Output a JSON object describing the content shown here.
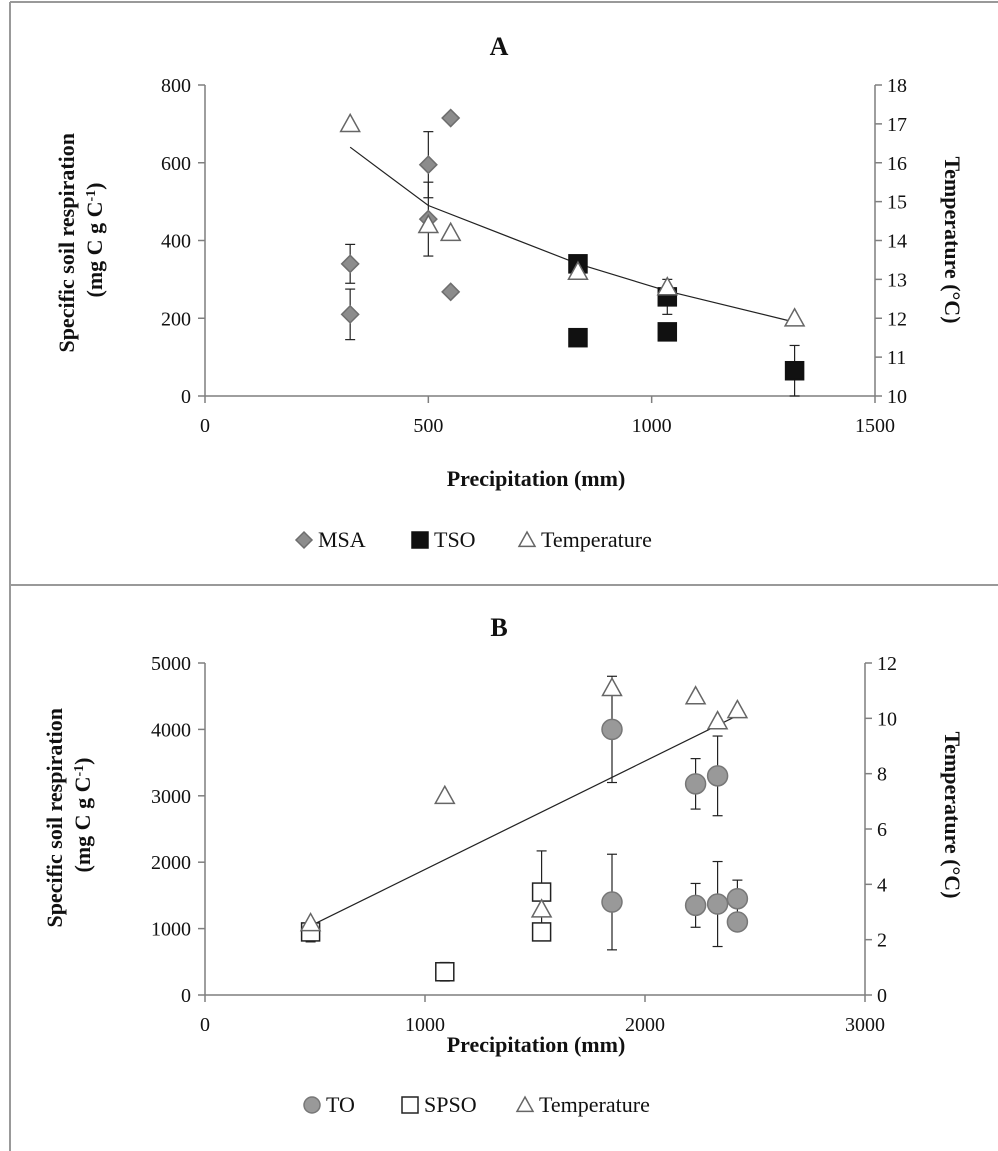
{
  "chart_data": [
    {
      "type": "scatter",
      "panel_label": "A",
      "xlabel": "Precipitation  (mm)",
      "ylabel_lines": [
        "Specific soil respiration",
        "(mg C g C"
      ],
      "ylabel_sup": "-1",
      "ylabel_close": ")",
      "y2label": "Temperature  (°C)",
      "xlim": [
        0,
        1500
      ],
      "xticks": [
        0,
        500,
        1000,
        1500
      ],
      "xtick_labels": [
        "0",
        "500",
        "1000",
        "1500"
      ],
      "ylim": [
        0,
        800
      ],
      "yticks": [
        0,
        200,
        400,
        600,
        800
      ],
      "ytick_labels": [
        "0",
        "200",
        "400",
        "600",
        "800"
      ],
      "y2lim": [
        10,
        18
      ],
      "y2ticks": [
        10,
        11,
        12,
        13,
        14,
        15,
        16,
        17,
        18
      ],
      "y2tick_labels": [
        "10",
        "11",
        "12",
        "13",
        "14",
        "15",
        "16",
        "17",
        "18"
      ],
      "grid": false,
      "legend_position": "bottom",
      "series": [
        {
          "name": "MSA",
          "marker": "diamond",
          "fill": "#8c8c8c",
          "stroke": "#6e6e6e",
          "axis": "left",
          "points": [
            {
              "x": 325,
              "y": 340,
              "err": 50
            },
            {
              "x": 325,
              "y": 210,
              "err": 65
            },
            {
              "x": 500,
              "y": 595,
              "err": 85
            },
            {
              "x": 500,
              "y": 455,
              "err": 95
            },
            {
              "x": 550,
              "y": 715,
              "err": 0
            },
            {
              "x": 550,
              "y": 268,
              "err": 0
            }
          ]
        },
        {
          "name": "TSO",
          "marker": "square",
          "fill": "#111111",
          "stroke": "#111111",
          "axis": "left",
          "points": [
            {
              "x": 835,
              "y": 340,
              "err": 0
            },
            {
              "x": 835,
              "y": 150,
              "err": 0
            },
            {
              "x": 1035,
              "y": 255,
              "err": 45
            },
            {
              "x": 1035,
              "y": 165,
              "err": 0
            },
            {
              "x": 1320,
              "y": 65,
              "err": 65
            }
          ]
        },
        {
          "name": "Temperature",
          "marker": "triangle",
          "fill": "#ffffff",
          "stroke": "#666666",
          "axis": "right",
          "points": [
            {
              "x": 325,
              "y": 17.0
            },
            {
              "x": 500,
              "y": 14.4
            },
            {
              "x": 550,
              "y": 14.2
            },
            {
              "x": 835,
              "y": 13.2
            },
            {
              "x": 1035,
              "y": 12.8
            },
            {
              "x": 1320,
              "y": 12.0
            }
          ]
        }
      ],
      "trendline": {
        "type": "log",
        "axis": "right",
        "points": [
          [
            325,
            16.4
          ],
          [
            500,
            14.9
          ],
          [
            835,
            13.4
          ],
          [
            1035,
            12.7
          ],
          [
            1320,
            11.9
          ]
        ]
      }
    },
    {
      "type": "scatter",
      "panel_label": "B",
      "xlabel": "Precipitation  (mm)",
      "ylabel_lines": [
        "Specific soil respiration",
        "(mg C g C"
      ],
      "ylabel_sup": "-1",
      "ylabel_close": ")",
      "y2label": "Temperature  (°C)",
      "xlim": [
        0,
        3000
      ],
      "xticks": [
        0,
        1000,
        2000,
        3000
      ],
      "xtick_labels": [
        "0",
        "1000",
        "2000",
        "3000"
      ],
      "ylim": [
        0,
        5000
      ],
      "yticks": [
        0,
        1000,
        2000,
        3000,
        4000,
        5000
      ],
      "ytick_labels": [
        "0",
        "1000",
        "2000",
        "3000",
        "4000",
        "5000"
      ],
      "y2lim": [
        0,
        12
      ],
      "y2ticks": [
        0,
        2,
        4,
        6,
        8,
        10,
        12
      ],
      "y2tick_labels": [
        "0",
        "2",
        "4",
        "6",
        "8",
        "10",
        "12"
      ],
      "grid": false,
      "legend_position": "bottom",
      "series": [
        {
          "name": "TO",
          "marker": "circle",
          "fill": "#999999",
          "stroke": "#777777",
          "axis": "left",
          "points": [
            {
              "x": 1850,
              "y": 4000,
              "err": 800
            },
            {
              "x": 1850,
              "y": 1400,
              "err": 720
            },
            {
              "x": 2230,
              "y": 3180,
              "err": 380
            },
            {
              "x": 2230,
              "y": 1350,
              "err": 330
            },
            {
              "x": 2330,
              "y": 3300,
              "err": 600
            },
            {
              "x": 2330,
              "y": 1370,
              "err": 640
            },
            {
              "x": 2420,
              "y": 1450,
              "err": 280
            },
            {
              "x": 2420,
              "y": 1100,
              "err": 0
            }
          ]
        },
        {
          "name": "SPSO",
          "marker": "square",
          "fill": "#ffffff",
          "stroke": "#222222",
          "axis": "left",
          "points": [
            {
              "x": 480,
              "y": 950,
              "err": 150
            },
            {
              "x": 1090,
              "y": 350,
              "err": 140
            },
            {
              "x": 1530,
              "y": 1550,
              "err": 620
            },
            {
              "x": 1530,
              "y": 950,
              "err": 90
            }
          ]
        },
        {
          "name": "Temperature",
          "marker": "triangle",
          "fill": "#ffffff",
          "stroke": "#666666",
          "axis": "right",
          "points": [
            {
              "x": 480,
              "y": 2.6
            },
            {
              "x": 1090,
              "y": 7.2
            },
            {
              "x": 1530,
              "y": 3.1
            },
            {
              "x": 1850,
              "y": 11.1
            },
            {
              "x": 2230,
              "y": 10.8
            },
            {
              "x": 2330,
              "y": 9.9
            },
            {
              "x": 2420,
              "y": 10.3
            }
          ]
        }
      ],
      "trendline": {
        "type": "linear",
        "axis": "right",
        "points": [
          [
            480,
            2.5
          ],
          [
            2420,
            10.1
          ]
        ]
      }
    }
  ]
}
